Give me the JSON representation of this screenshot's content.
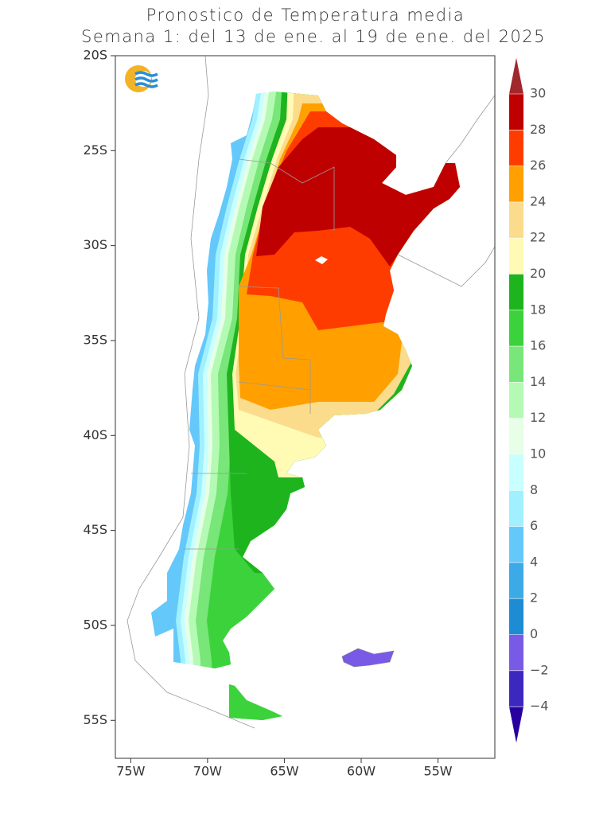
{
  "chart_data": {
    "type": "map",
    "title": [
      "Pronostico de Temperatura media",
      "Semana 1: del 13 de ene. al 19 de ene. del 2025"
    ],
    "xlim": [
      -76,
      -51.3
    ],
    "ylim": [
      -20,
      -57
    ],
    "xticks": [
      {
        "value": -75,
        "label": "75W"
      },
      {
        "value": -70,
        "label": "70W"
      },
      {
        "value": -65,
        "label": "65W"
      },
      {
        "value": -60,
        "label": "60W"
      },
      {
        "value": -55,
        "label": "55W"
      }
    ],
    "yticks": [
      {
        "value": -20,
        "label": "20S"
      },
      {
        "value": -25,
        "label": "25S"
      },
      {
        "value": -30,
        "label": "30S"
      },
      {
        "value": -35,
        "label": "35S"
      },
      {
        "value": -40,
        "label": "40S"
      },
      {
        "value": -45,
        "label": "45S"
      },
      {
        "value": -50,
        "label": "50S"
      },
      {
        "value": -55,
        "label": "55S"
      }
    ],
    "colorbar": {
      "levels": [
        30,
        28,
        26,
        24,
        22,
        20,
        18,
        16,
        14,
        12,
        10,
        8,
        6,
        4,
        2,
        0,
        {
          "value": -2,
          "label": "−2"
        },
        {
          "value": -4,
          "label": "−4"
        }
      ],
      "colors": [
        "#a0282d",
        "#be0000",
        "#ff3c00",
        "#ffa000",
        "#fadc8c",
        "#fffab4",
        "#1eb41e",
        "#3cd23c",
        "#78e678",
        "#b4fab4",
        "#e6ffe6",
        "#c8ffff",
        "#a0f0ff",
        "#64c8fa",
        "#3caae6",
        "#1e8cd2",
        "#785ae6",
        "#3c28be",
        "#2800a0"
      ]
    }
  }
}
